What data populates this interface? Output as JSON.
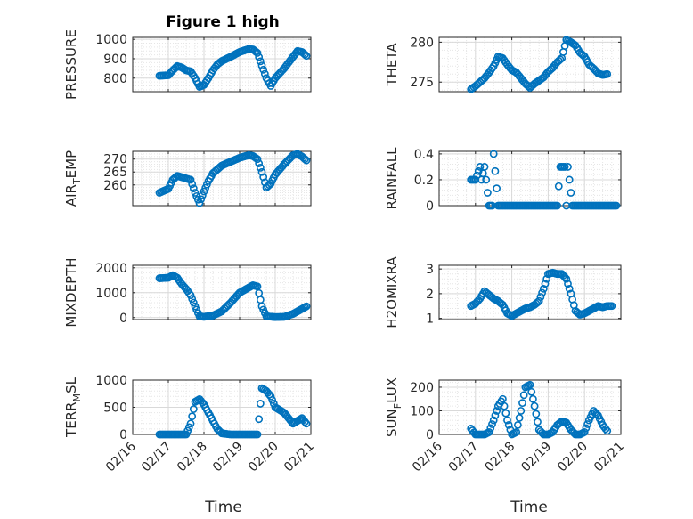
{
  "figure": {
    "title": "Figure 1 high",
    "xlabel": "Time",
    "date_ticks": [
      "02/16",
      "02/17",
      "02/18",
      "02/19",
      "02/20",
      "02/21"
    ]
  },
  "colors": {
    "marker": "#0072BD",
    "axis": "#262626",
    "grid": "#d9d9d9"
  },
  "chart_data": [
    {
      "type": "scatter",
      "ylabel": "PRESSURE",
      "ylabel_sub": "",
      "xlim": [
        "02/16",
        "02/21"
      ],
      "ylim": [
        730,
        1010
      ],
      "yticks": [
        800,
        900,
        1000
      ],
      "grid": true,
      "x": [
        "02/16 18:00",
        "02/17 00:00",
        "02/17 03:00",
        "02/17 06:00",
        "02/17 09:00",
        "02/17 12:00",
        "02/17 15:00",
        "02/17 18:00",
        "02/17 21:00",
        "02/18 00:00",
        "02/18 03:00",
        "02/18 06:00",
        "02/18 09:00",
        "02/18 12:00",
        "02/18 18:00",
        "02/19 00:00",
        "02/19 06:00",
        "02/19 09:00",
        "02/19 12:00",
        "02/19 15:00",
        "02/19 18:00",
        "02/19 21:00",
        "02/20 00:00",
        "02/20 06:00",
        "02/20 12:00",
        "02/20 15:00",
        "02/20 18:00",
        "02/20 21:00"
      ],
      "y": [
        812,
        815,
        840,
        862,
        855,
        840,
        835,
        800,
        755,
        765,
        800,
        840,
        870,
        888,
        910,
        935,
        950,
        948,
        930,
        865,
        800,
        760,
        800,
        850,
        910,
        940,
        935,
        915
      ]
    },
    {
      "type": "scatter",
      "ylabel": "THETA",
      "ylabel_sub": "",
      "xlim": [
        "02/16",
        "02/21"
      ],
      "ylim": [
        273.8,
        280.6
      ],
      "yticks": [
        275,
        280
      ],
      "grid": true,
      "x": [
        "02/16 21:00",
        "02/17 00:00",
        "02/17 03:00",
        "02/17 06:00",
        "02/17 09:00",
        "02/17 12:00",
        "02/17 15:00",
        "02/17 18:00",
        "02/17 21:00",
        "02/18 00:00",
        "02/18 03:00",
        "02/18 06:00",
        "02/18 09:00",
        "02/18 12:00",
        "02/18 15:00",
        "02/18 18:00",
        "02/18 21:00",
        "02/19 00:00",
        "02/19 03:00",
        "02/19 06:00",
        "02/19 09:00",
        "02/19 12:00",
        "02/19 15:00",
        "02/19 18:00",
        "02/19 21:00",
        "02/20 00:00",
        "02/20 03:00",
        "02/20 06:00",
        "02/20 09:00",
        "02/20 12:00",
        "02/20 15:00"
      ],
      "y": [
        274.1,
        274.5,
        275.0,
        275.5,
        276.2,
        277.0,
        278.2,
        278.0,
        277.2,
        276.5,
        276.2,
        275.5,
        274.8,
        274.3,
        274.8,
        275.2,
        275.6,
        276.3,
        276.8,
        277.5,
        278.0,
        280.3,
        280.0,
        279.6,
        278.7,
        278.2,
        277.2,
        276.7,
        276.1,
        275.9,
        276.0
      ]
    },
    {
      "type": "scatter",
      "ylabel": "AIR",
      "ylabel_sub": "T",
      "ylabel_rest": "EMP",
      "xlim": [
        "02/16",
        "02/21"
      ],
      "ylim": [
        252,
        273
      ],
      "yticks": [
        260,
        265,
        270
      ],
      "grid": true,
      "x": [
        "02/16 18:00",
        "02/17 00:00",
        "02/17 03:00",
        "02/17 06:00",
        "02/17 09:00",
        "02/17 12:00",
        "02/17 15:00",
        "02/17 18:00",
        "02/17 21:00",
        "02/18 00:00",
        "02/18 03:00",
        "02/18 06:00",
        "02/18 09:00",
        "02/18 12:00",
        "02/18 18:00",
        "02/19 00:00",
        "02/19 06:00",
        "02/19 09:00",
        "02/19 12:00",
        "02/19 15:00",
        "02/19 18:00",
        "02/19 21:00",
        "02/20 00:00",
        "02/20 06:00",
        "02/20 12:00",
        "02/20 15:00",
        "02/20 18:00",
        "02/20 21:00"
      ],
      "y": [
        257.0,
        258.5,
        262.0,
        263.5,
        263.0,
        262.5,
        262.0,
        257.0,
        253.0,
        257.5,
        261.5,
        264.5,
        266.0,
        267.5,
        269.0,
        270.5,
        271.5,
        271.2,
        270.0,
        265.0,
        259.0,
        260.5,
        264.0,
        268.0,
        271.5,
        272.0,
        271.0,
        269.5
      ]
    },
    {
      "type": "scatter",
      "ylabel": "RAINFALL",
      "ylabel_sub": "",
      "xlim": [
        "02/16",
        "02/21"
      ],
      "ylim": [
        0,
        0.42
      ],
      "yticks": [
        0,
        0.2,
        0.4
      ],
      "grid": true,
      "x": [
        "02/16 21:00",
        "02/17 00:00",
        "02/17 03:00",
        "02/17 04:00",
        "02/17 06:00",
        "02/17 07:00",
        "02/17 09:00",
        "02/17 11:00",
        "02/17 12:00",
        "02/17 15:00",
        "02/17 18:00",
        "02/17 21:00",
        "02/18 00:00",
        "02/18 06:00",
        "02/18 12:00",
        "02/18 18:00",
        "02/19 00:00",
        "02/19 06:00",
        "02/19 08:00",
        "02/19 11:00",
        "02/19 12:00",
        "02/19 13:00",
        "02/19 16:00",
        "02/19 18:00",
        "02/20 00:00",
        "02/20 06:00",
        "02/20 12:00",
        "02/20 18:00",
        "02/20 21:00"
      ],
      "y": [
        0.2,
        0.2,
        0.3,
        0.2,
        0.3,
        0.2,
        0,
        0,
        0.4,
        0,
        0,
        0,
        0,
        0,
        0,
        0,
        0,
        0,
        0.3,
        0.3,
        0,
        0.3,
        0,
        0,
        0,
        0,
        0,
        0,
        0
      ]
    },
    {
      "type": "scatter",
      "ylabel": "MIXDEPTH",
      "ylabel_sub": "",
      "xlim": [
        "02/16",
        "02/21"
      ],
      "ylim": [
        -80,
        2100
      ],
      "yticks": [
        0,
        1000,
        2000
      ],
      "grid": true,
      "x": [
        "02/16 18:00",
        "02/17 00:00",
        "02/17 03:00",
        "02/17 06:00",
        "02/17 09:00",
        "02/17 12:00",
        "02/17 15:00",
        "02/17 18:00",
        "02/17 21:00",
        "02/18 00:00",
        "02/18 06:00",
        "02/18 12:00",
        "02/18 18:00",
        "02/19 00:00",
        "02/19 06:00",
        "02/19 09:00",
        "02/19 12:00",
        "02/19 15:00",
        "02/19 18:00",
        "02/20 00:00",
        "02/20 06:00",
        "02/20 12:00",
        "02/20 18:00",
        "02/20 21:00"
      ],
      "y": [
        1580,
        1600,
        1700,
        1600,
        1350,
        1150,
        900,
        450,
        50,
        30,
        80,
        250,
        600,
        1000,
        1200,
        1300,
        1250,
        450,
        50,
        20,
        30,
        150,
        350,
        450
      ]
    },
    {
      "type": "scatter",
      "ylabel": "H2OMIXRA",
      "ylabel_sub": "",
      "xlim": [
        "02/16",
        "02/21"
      ],
      "ylim": [
        0.95,
        3.15
      ],
      "yticks": [
        1,
        2,
        3
      ],
      "grid": true,
      "x": [
        "02/16 21:00",
        "02/17 00:00",
        "02/17 03:00",
        "02/17 06:00",
        "02/17 09:00",
        "02/17 12:00",
        "02/17 15:00",
        "02/17 18:00",
        "02/17 21:00",
        "02/18 00:00",
        "02/18 03:00",
        "02/18 06:00",
        "02/18 09:00",
        "02/18 12:00",
        "02/18 15:00",
        "02/18 18:00",
        "02/18 21:00",
        "02/19 00:00",
        "02/19 03:00",
        "02/19 06:00",
        "02/19 09:00",
        "02/19 12:00",
        "02/19 15:00",
        "02/19 18:00",
        "02/19 21:00",
        "02/20 00:00",
        "02/20 03:00",
        "02/20 06:00",
        "02/20 09:00",
        "02/20 12:00",
        "02/20 15:00",
        "02/20 18:00"
      ],
      "y": [
        1.5,
        1.6,
        1.8,
        2.1,
        1.95,
        1.8,
        1.7,
        1.55,
        1.2,
        1.1,
        1.2,
        1.3,
        1.4,
        1.45,
        1.55,
        1.7,
        2.2,
        2.8,
        2.85,
        2.8,
        2.8,
        2.6,
        2.0,
        1.3,
        1.15,
        1.2,
        1.3,
        1.4,
        1.5,
        1.45,
        1.5,
        1.5
      ]
    },
    {
      "type": "scatter",
      "ylabel": "TERR",
      "ylabel_sub": "M",
      "ylabel_rest": "SL",
      "xlim": [
        "02/16",
        "02/21"
      ],
      "ylim": [
        0,
        1000
      ],
      "yticks": [
        0,
        500,
        1000
      ],
      "grid": true,
      "x": [
        "02/16 18:00",
        "02/17 00:00",
        "02/17 06:00",
        "02/17 12:00",
        "02/17 15:00",
        "02/17 18:00",
        "02/17 21:00",
        "02/18 00:00",
        "02/18 03:00",
        "02/18 06:00",
        "02/18 09:00",
        "02/18 12:00",
        "02/18 18:00",
        "02/19 00:00",
        "02/19 06:00",
        "02/19 09:00",
        "02/19 12:00",
        "02/19 15:00",
        "02/19 18:00",
        "02/19 21:00",
        "02/20 00:00",
        "02/20 03:00",
        "02/20 06:00",
        "02/20 09:00",
        "02/20 12:00",
        "02/20 15:00",
        "02/20 18:00",
        "02/20 21:00"
      ],
      "y": [
        0,
        0,
        0,
        0,
        200,
        600,
        650,
        550,
        400,
        250,
        100,
        20,
        0,
        0,
        0,
        0,
        0,
        850,
        800,
        700,
        500,
        450,
        400,
        300,
        200,
        250,
        300,
        200
      ]
    },
    {
      "type": "scatter",
      "ylabel": "SUN",
      "ylabel_sub": "F",
      "ylabel_rest": "LUX",
      "xlim": [
        "02/16",
        "02/21"
      ],
      "ylim": [
        0,
        230
      ],
      "yticks": [
        0,
        100,
        200
      ],
      "grid": true,
      "x": [
        "02/16 21:00",
        "02/17 00:00",
        "02/17 03:00",
        "02/17 06:00",
        "02/17 09:00",
        "02/17 12:00",
        "02/17 15:00",
        "02/17 18:00",
        "02/17 21:00",
        "02/18 00:00",
        "02/18 03:00",
        "02/18 06:00",
        "02/18 09:00",
        "02/18 12:00",
        "02/18 15:00",
        "02/18 18:00",
        "02/18 21:00",
        "02/19 00:00",
        "02/19 03:00",
        "02/19 06:00",
        "02/19 09:00",
        "02/19 12:00",
        "02/19 15:00",
        "02/19 18:00",
        "02/19 21:00",
        "02/20 00:00",
        "02/20 03:00",
        "02/20 06:00",
        "02/20 09:00",
        "02/20 12:00",
        "02/20 15:00"
      ],
      "y": [
        25,
        0,
        0,
        0,
        10,
        60,
        120,
        150,
        60,
        0,
        10,
        100,
        200,
        210,
        120,
        20,
        0,
        0,
        10,
        40,
        55,
        50,
        20,
        0,
        0,
        10,
        60,
        100,
        80,
        40,
        15
      ]
    }
  ]
}
